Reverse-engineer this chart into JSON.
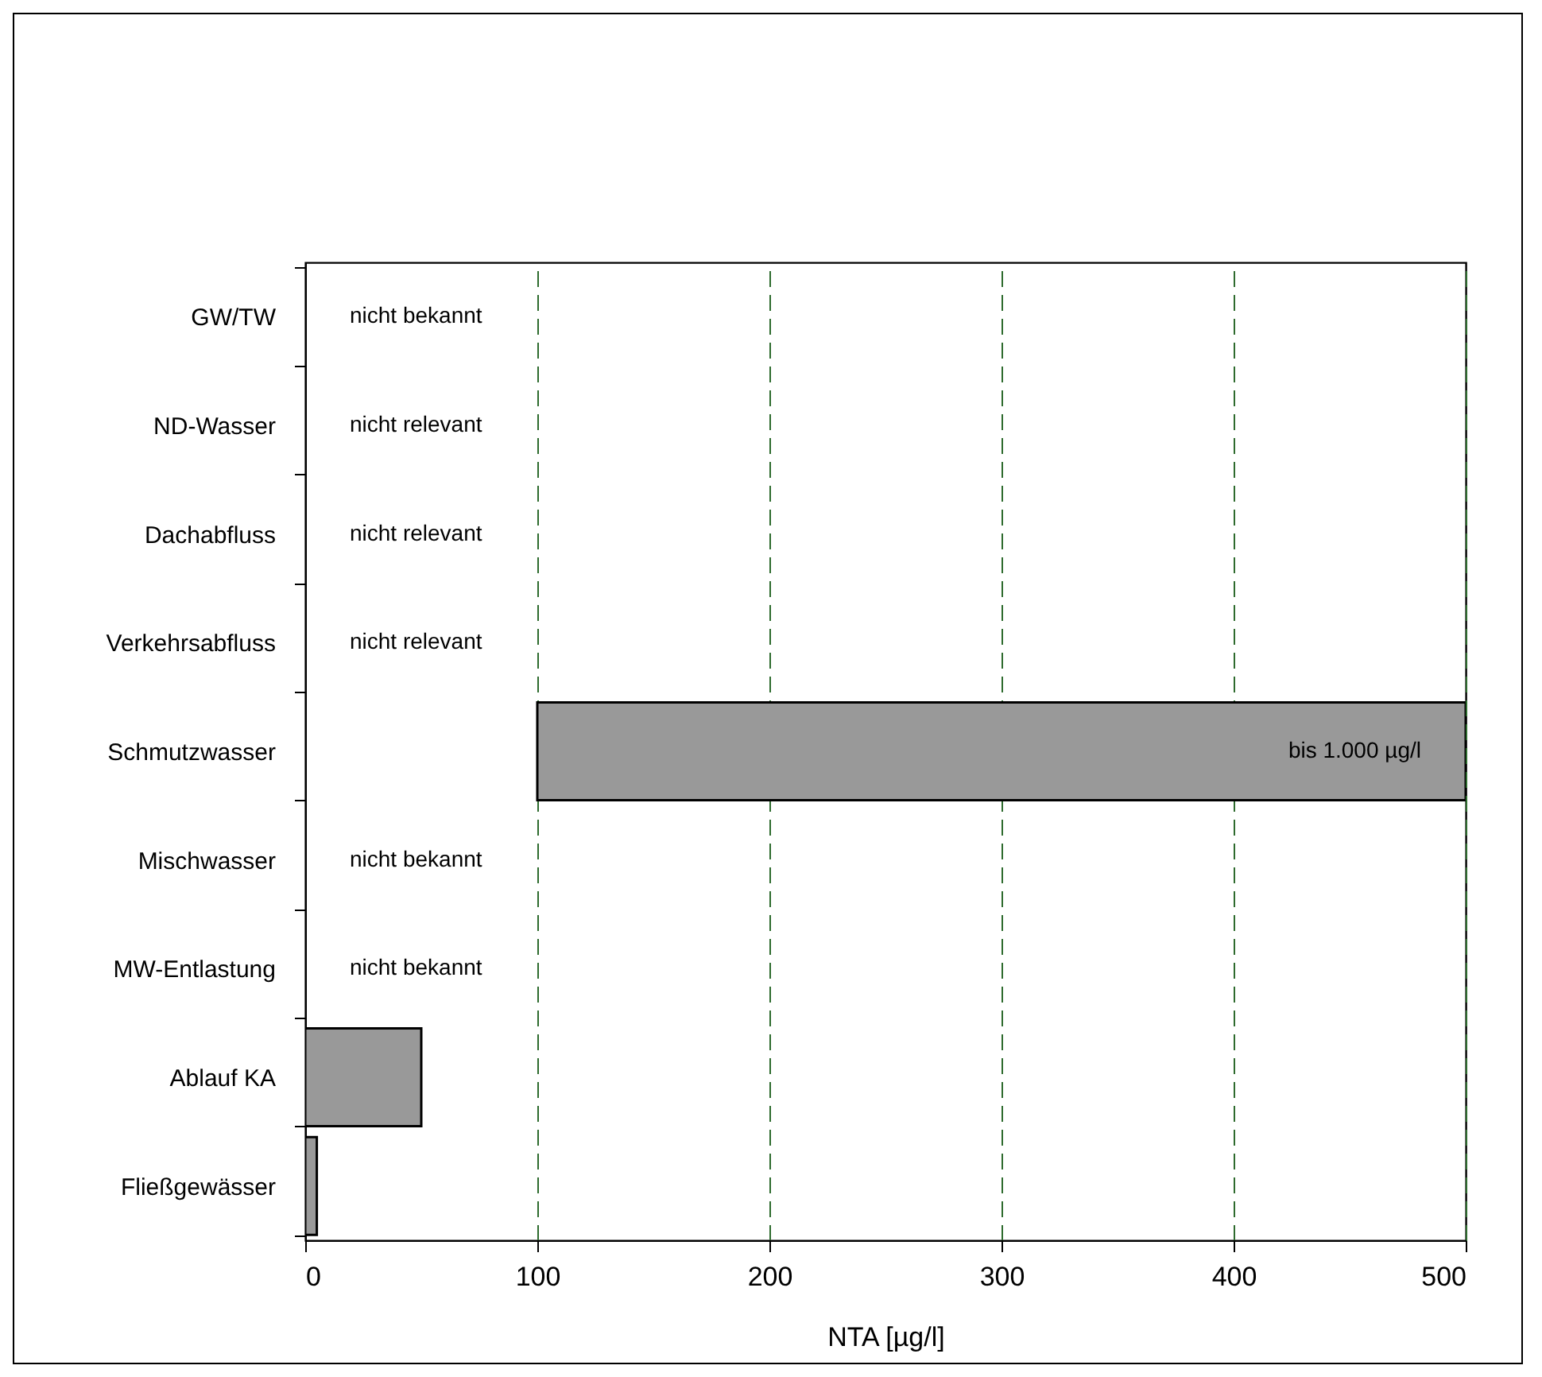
{
  "chart_data": {
    "type": "bar",
    "orientation": "horizontal",
    "xlabel": "NTA [µg/l]",
    "categories": [
      "GW/TW",
      "ND-Wasser",
      "Dachabfluss",
      "Verkehrsabfluss",
      "Schmutzwasser",
      "Mischwasser",
      "MW-Entlastung",
      "Ablauf KA",
      "Fließgewässer"
    ],
    "values": [
      null,
      null,
      null,
      null,
      400,
      null,
      null,
      50,
      5
    ],
    "base": [
      null,
      null,
      null,
      null,
      100,
      null,
      null,
      0,
      0
    ],
    "value_labels": [
      "nicht bekannt",
      "nicht relevant",
      "nicht relevant",
      "nicht relevant",
      "bis 1.000 µg/l",
      "nicht bekannt",
      "nicht bekannt",
      null,
      null
    ],
    "color": "#999999",
    "xlim": [
      0,
      500
    ],
    "xticks": [
      0,
      100,
      200,
      300,
      400,
      500
    ],
    "grid": "x"
  }
}
